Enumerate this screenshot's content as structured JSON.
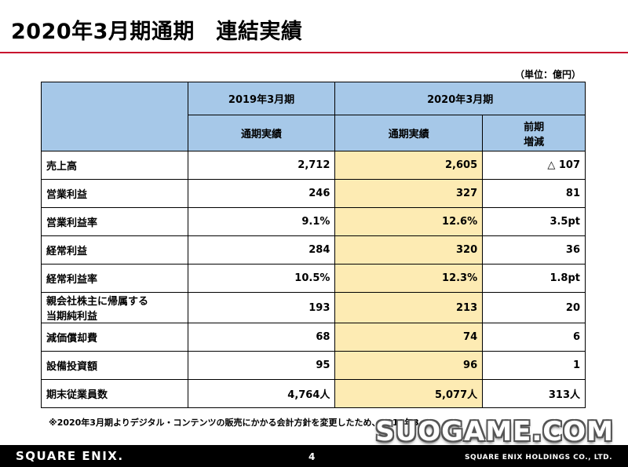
{
  "title": "2020年3月期通期　連結実績",
  "unit_note": "（単位：億円）",
  "table": {
    "header_period_prev": "2019年3月期",
    "header_period_curr": "2020年3月期",
    "sub_prev": "通期実績",
    "sub_curr": "通期実績",
    "sub_change_line1": "前期",
    "sub_change_line2": "増減",
    "rows": [
      {
        "label": "売上高",
        "prev": "2,712",
        "curr": "2,605",
        "change": "△ 107"
      },
      {
        "label": "営業利益",
        "prev": "246",
        "curr": "327",
        "change": "81"
      },
      {
        "label": "営業利益率",
        "prev": "9.1%",
        "curr": "12.6%",
        "change": "3.5pt"
      },
      {
        "label": "経常利益",
        "prev": "284",
        "curr": "320",
        "change": "36"
      },
      {
        "label": "経常利益率",
        "prev": "10.5%",
        "curr": "12.3%",
        "change": "1.8pt"
      },
      {
        "label_line1": "親会社株主に帰属する",
        "label_line2": "当期純利益",
        "prev": "193",
        "curr": "213",
        "change": "20"
      },
      {
        "label": "減価償却費",
        "prev": "68",
        "curr": "74",
        "change": "6"
      },
      {
        "label": "設備投資額",
        "prev": "95",
        "curr": "96",
        "change": "1"
      },
      {
        "label": "期末従業員数",
        "prev": "4,764人",
        "curr": "5,077人",
        "change": "313人"
      }
    ]
  },
  "footnote": "※2020年3月期よりデジタル・コンテンツの販売にかかる会計方針を変更したため、2019年3",
  "watermark": "SUOGAME.COM",
  "footer": {
    "logo": "SQUARE ENIX.",
    "page_number": "4",
    "company": "SQUARE ENIX HOLDINGS CO., LTD."
  },
  "colors": {
    "header_blue": "#a6c8e8",
    "highlight_yellow": "#fdebb3",
    "title_rule": "#c8102e"
  }
}
